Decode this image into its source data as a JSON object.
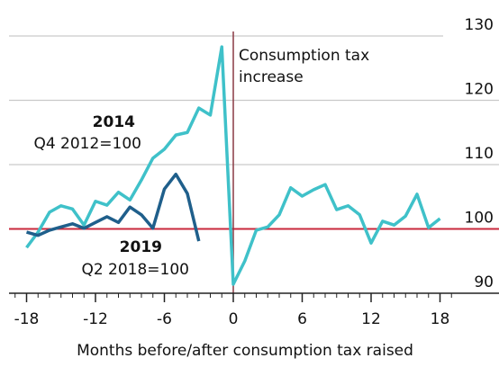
{
  "chart_data": {
    "type": "line",
    "x_label": "Months before/after consumption tax raised",
    "annotations": [
      "Consumption tax",
      "increase",
      "Q4 2012=100",
      "Q2 2018=100"
    ],
    "x": [
      -18,
      -17,
      -16,
      -15,
      -14,
      -13,
      -12,
      -11,
      -10,
      -9,
      -8,
      -7,
      -6,
      -5,
      -4,
      -3,
      -2,
      -1,
      0,
      1,
      2,
      3,
      4,
      5,
      6,
      7,
      8,
      9,
      10,
      11,
      12,
      13,
      14,
      15,
      16,
      17,
      18
    ],
    "series": [
      {
        "name": "2014",
        "color": "#3fc1c9",
        "values": [
          97.1,
          99.5,
          102.6,
          103.6,
          103.1,
          100.6,
          104.3,
          103.7,
          105.7,
          104.5,
          107.6,
          111.0,
          112.4,
          114.6,
          115.0,
          118.8,
          117.7,
          128.3,
          91.4,
          95.0,
          99.8,
          100.3,
          102.2,
          106.4,
          105.1,
          106.1,
          106.9,
          103.0,
          103.6,
          102.2,
          97.8,
          101.2,
          100.6,
          102.0,
          105.4,
          100.2,
          101.6
        ]
      },
      {
        "name": "2019",
        "color": "#1f5f8b",
        "values": [
          99.5,
          99.0,
          99.8,
          100.3,
          100.8,
          100.1,
          101.0,
          101.9,
          101.0,
          103.4,
          102.2,
          100.1,
          106.2,
          108.5,
          105.5,
          98.1,
          null,
          null,
          null,
          null,
          null,
          null,
          null,
          null,
          null,
          null,
          null,
          null,
          null,
          null,
          null,
          null,
          null,
          null,
          null,
          null,
          null
        ]
      }
    ],
    "xlim": [
      -19,
      19
    ],
    "xticks": [
      -18,
      -12,
      -6,
      0,
      6,
      12,
      18
    ],
    "ylim": [
      90,
      130
    ],
    "yticks": [
      90,
      100,
      110,
      120,
      130
    ],
    "reference_y": 100,
    "reference_x": 0,
    "reference_color": "#c8283c",
    "grid": true
  }
}
